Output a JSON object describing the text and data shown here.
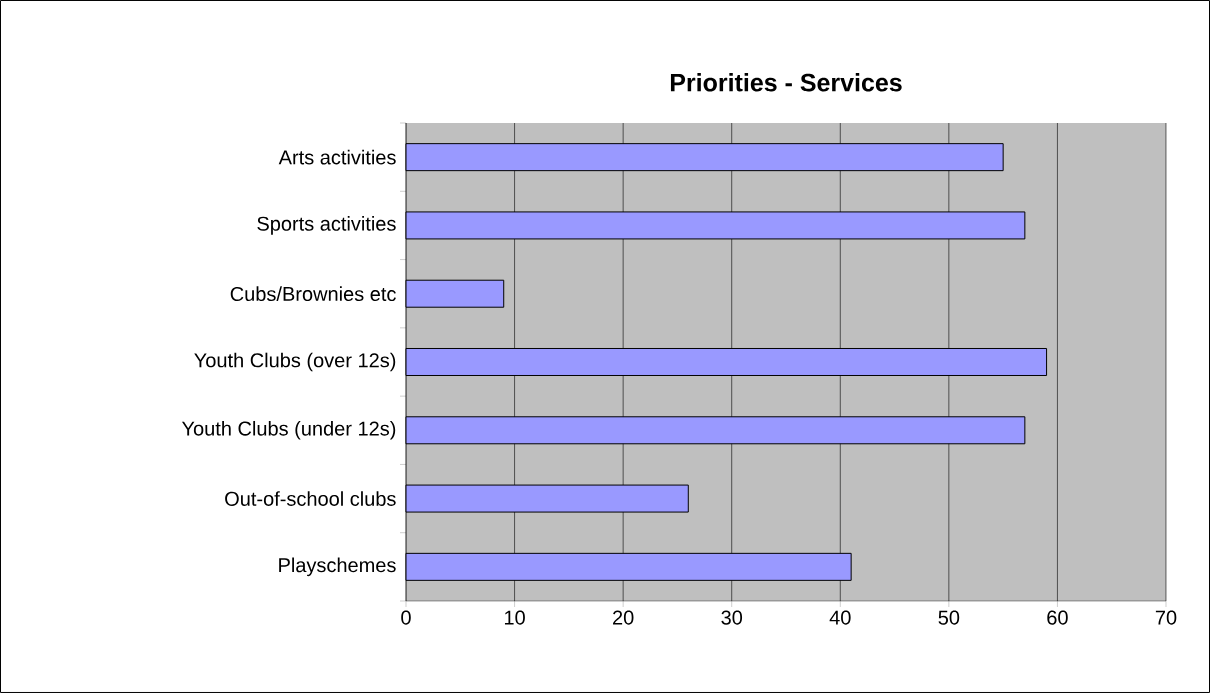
{
  "chart_data": {
    "type": "bar",
    "orientation": "horizontal",
    "title": "Priorities - Services",
    "categories": [
      "Arts activities",
      "Sports activities",
      "Cubs/Brownies etc",
      "Youth Clubs (over 12s)",
      "Youth Clubs (under 12s)",
      "Out-of-school clubs",
      "Playschemes"
    ],
    "values": [
      55,
      57,
      9,
      59,
      57,
      26,
      41
    ],
    "color": "#9999ff",
    "xlim": [
      0,
      70
    ],
    "xticks": [
      0,
      10,
      20,
      30,
      40,
      50,
      60,
      70
    ],
    "grid": "x"
  }
}
